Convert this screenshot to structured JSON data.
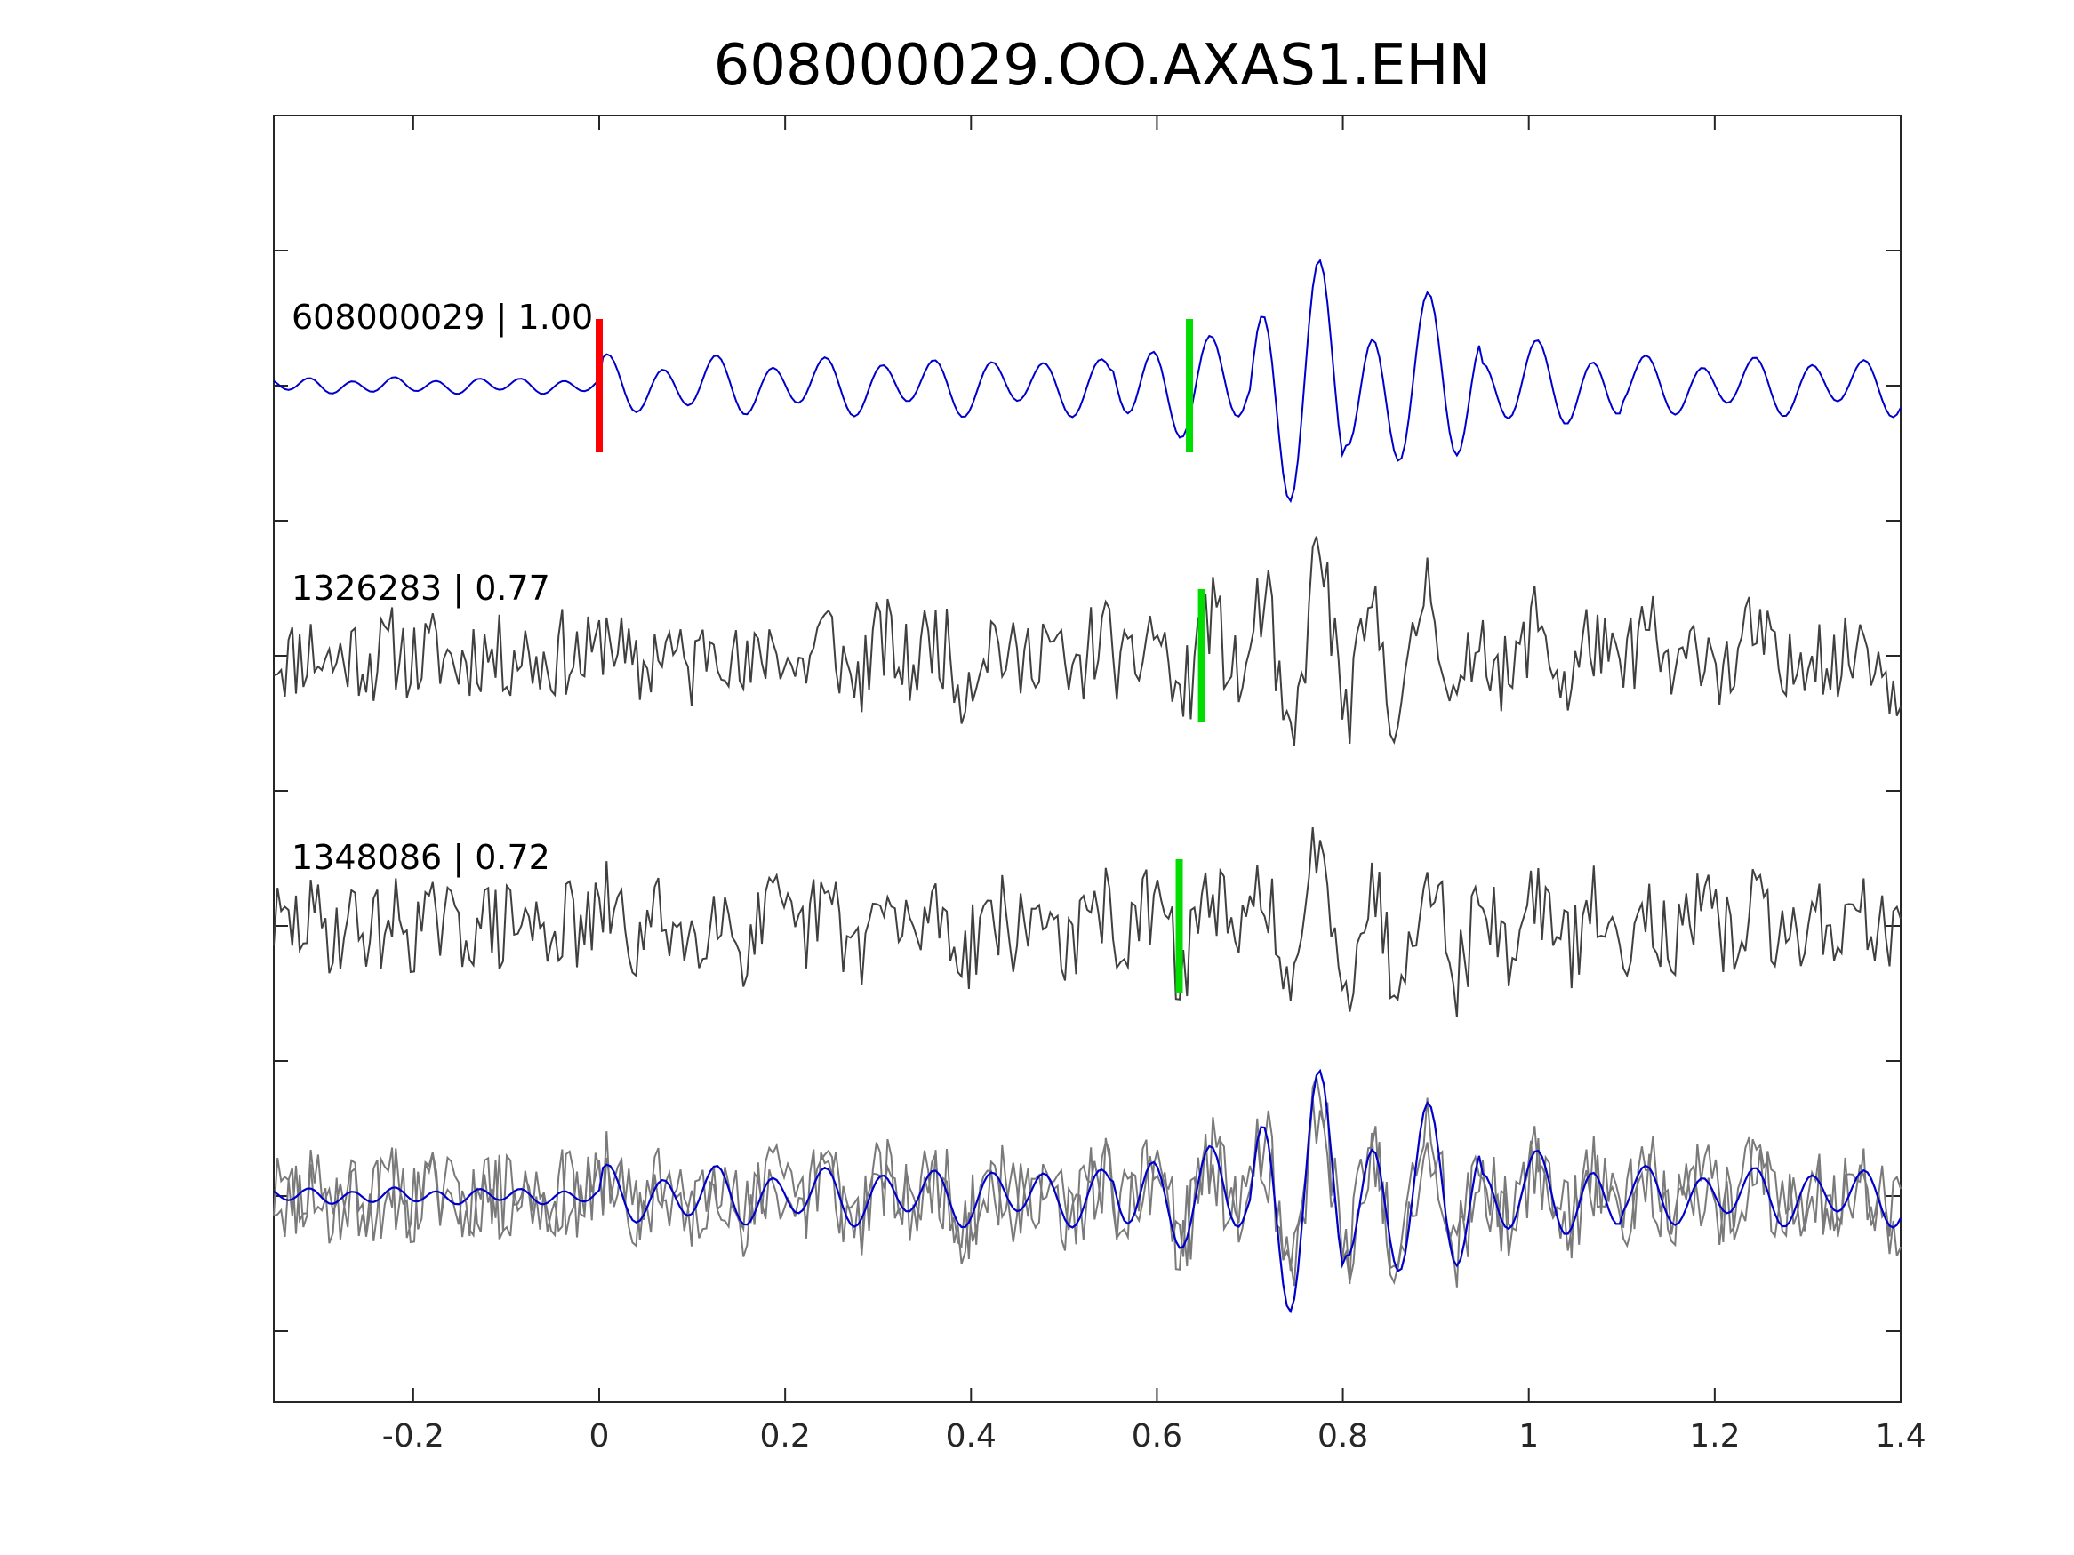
{
  "chart_data": {
    "type": "line",
    "title": "608000029.OO.AXAS1.EHN",
    "xlabel": "",
    "ylabel": "",
    "xlim": [
      -0.35,
      1.4
    ],
    "x_ticks": [
      -0.2,
      0,
      0.2,
      0.4,
      0.6,
      0.8,
      1,
      1.2,
      1.4
    ],
    "x_tick_labels": [
      "-0.2",
      "0",
      "0.2",
      "0.4",
      "0.6",
      "0.8",
      "1",
      "1.2",
      "1.4"
    ],
    "y_ticks_unlabeled": 9,
    "grid": false,
    "legend": "none",
    "colors": {
      "reference": "#0000cc",
      "neighbor_trace": "#404040",
      "overlay_trace": "#7a7a7a",
      "origin_marker": "#ff0000",
      "pick_marker": "#00dd00",
      "axes": "#262626"
    },
    "series": [
      {
        "label": "608000029 | 1.00",
        "role": "reference",
        "pick_x": 0.635,
        "origin_marker_x": 0.0
      },
      {
        "label": "1326283 | 0.77",
        "role": "neighbor",
        "pick_x": 0.648
      },
      {
        "label": "1348086 | 0.72",
        "role": "neighbor",
        "pick_x": 0.624
      },
      {
        "label": "",
        "role": "overlay_stack"
      }
    ]
  }
}
